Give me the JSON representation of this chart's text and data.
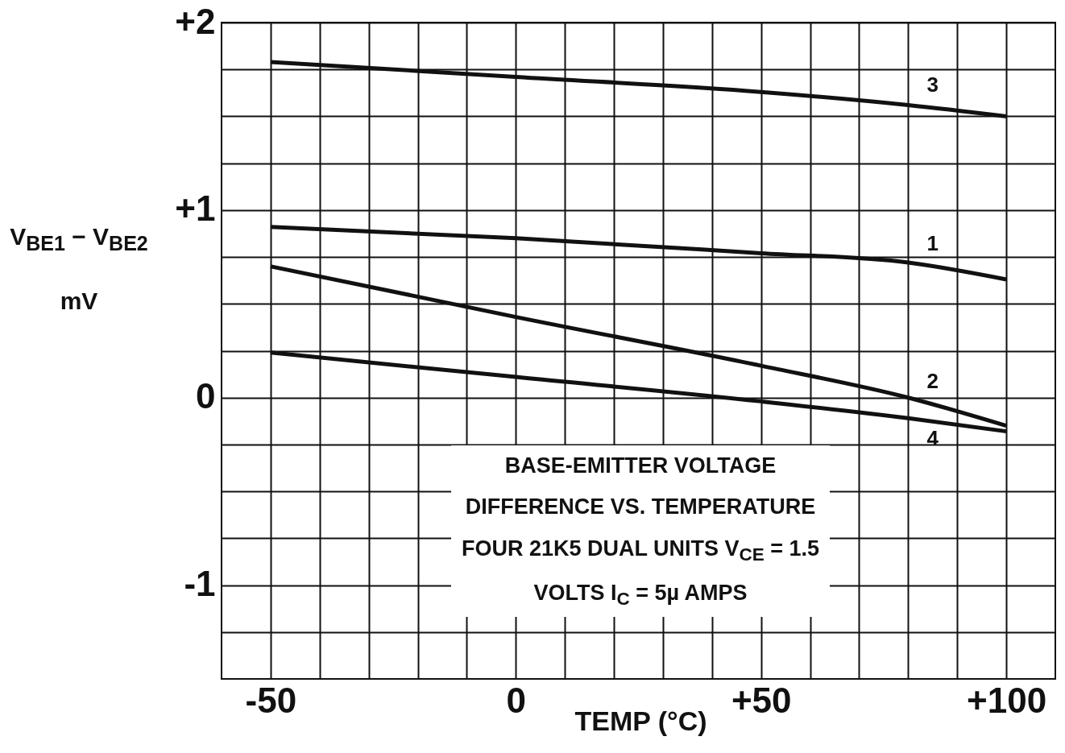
{
  "chart_data": {
    "type": "line",
    "title": "BASE-EMITTER VOLTAGE DIFFERENCE VS. TEMPERATURE",
    "subtitle": "FOUR 21K5 DUAL UNITS   V$_{CE}$ = 1.5 VOLTS   I$_{C}$ = 5µ AMPS",
    "xlabel": "TEMP (°C)",
    "ylabel": "V$_{BE1}$ − V$_{BE2}$ mV",
    "x": [
      -50,
      0,
      50,
      80,
      100
    ],
    "series": [
      {
        "name": "1",
        "color": "#111111",
        "values": [
          0.91,
          0.85,
          0.77,
          0.72,
          0.63
        ]
      },
      {
        "name": "2",
        "color": "#111111",
        "values": [
          0.7,
          0.43,
          0.17,
          0.0,
          -0.15
        ]
      },
      {
        "name": "3",
        "color": "#111111",
        "values": [
          1.79,
          1.71,
          1.63,
          1.56,
          1.5
        ]
      },
      {
        "name": "4",
        "color": "#111111",
        "values": [
          0.24,
          0.11,
          -0.02,
          -0.11,
          -0.18
        ]
      }
    ],
    "xlim": [
      -60,
      110
    ],
    "xticks": [
      {
        "value": -50,
        "label": "-50"
      },
      {
        "value": -40,
        "label": null
      },
      {
        "value": -30,
        "label": null
      },
      {
        "value": -20,
        "label": null
      },
      {
        "value": -10,
        "label": null
      },
      0,
      {
        "value": 10,
        "label": null
      },
      {
        "value": 20,
        "label": null
      },
      {
        "value": 30,
        "label": null
      },
      {
        "value": 40,
        "label": null
      },
      {
        "value": 50,
        "label": "+50"
      },
      {
        "value": 60,
        "label": null
      },
      {
        "value": 70,
        "label": null
      },
      {
        "value": 80,
        "label": null
      },
      {
        "value": 90,
        "label": null
      },
      {
        "value": 100,
        "label": "+100"
      }
    ],
    "ylim": [
      -1.5,
      2
    ],
    "yticks": [
      {
        "value": -1.25,
        "label": null
      },
      {
        "value": -1,
        "label": "-1"
      },
      {
        "value": -0.75,
        "label": null
      },
      {
        "value": -0.5,
        "label": null
      },
      {
        "value": -0.25,
        "label": null
      },
      0,
      {
        "value": 0.25,
        "label": null
      },
      {
        "value": 0.5,
        "label": null
      },
      {
        "value": 0.75,
        "label": null
      },
      {
        "value": 1,
        "label": "+1"
      },
      {
        "value": 1.25,
        "label": null
      },
      {
        "value": 1.5,
        "label": null
      },
      {
        "value": 1.75,
        "label": null
      },
      {
        "value": 2,
        "label": "+2"
      }
    ],
    "grid": true,
    "marker": "none",
    "line_style": "solid"
  }
}
